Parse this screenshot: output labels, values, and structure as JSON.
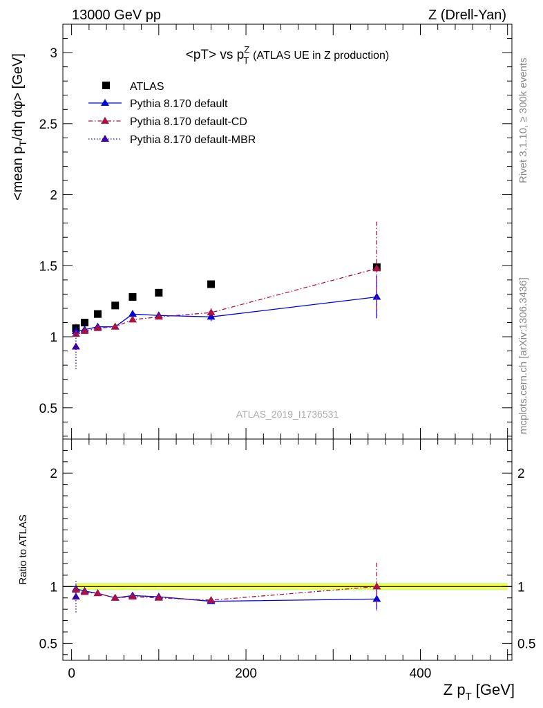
{
  "header": {
    "energy_label": "13000 GeV pp",
    "process_label": "Z (Drell-Yan)"
  },
  "side_text": {
    "rivet": "Rivet 3.1.10, ≥ 300k events",
    "mcplots": "mcplots.cern.ch [arXiv:1306.3436]"
  },
  "watermark": "ATLAS_2019_I1736531",
  "colors": {
    "data": "#000000",
    "default": "#0000dd",
    "cd": "#aa1144",
    "mbr": "#3300aa",
    "band_inner": "#ffff33",
    "band_outer": "#ccff99"
  },
  "chart_data": [
    {
      "type": "scatter",
      "panel": "main",
      "title_parts": {
        "lead": "<pT> vs p",
        "sup": "Z",
        "sub": "T",
        "tail": "(ATLAS UE in Z production)"
      },
      "ylabel_parts": {
        "a": "<mean p",
        "b": "T",
        "c": "/dη dφ> [GeV]"
      },
      "ylim": [
        0.28,
        3.2
      ],
      "xlim": [
        -10,
        505
      ],
      "yticks": [
        0.5,
        1,
        1.5,
        2,
        2.5,
        3
      ],
      "ytick_labels": [
        "0.5",
        "1",
        "1.5",
        "2",
        "2.5",
        "3"
      ],
      "legend_position": "top-left",
      "series": [
        {
          "name": "ATLAS",
          "style": "data",
          "x": [
            5,
            15,
            30,
            50,
            70,
            100,
            160,
            350
          ],
          "y": [
            1.06,
            1.1,
            1.16,
            1.22,
            1.28,
            1.31,
            1.37,
            1.49
          ]
        },
        {
          "name": "Pythia 8.170 default",
          "style": "default",
          "x": [
            5,
            15,
            30,
            50,
            70,
            100,
            160,
            350
          ],
          "y": [
            1.04,
            1.05,
            1.07,
            1.07,
            1.16,
            1.15,
            1.14,
            1.28
          ],
          "err": [
            0.02,
            0.01,
            0.01,
            0.01,
            0.02,
            0.02,
            0.03,
            0.15
          ]
        },
        {
          "name": "Pythia 8.170 default-CD",
          "style": "cd",
          "x": [
            5,
            15,
            30,
            50,
            70,
            100,
            160,
            350
          ],
          "y": [
            1.02,
            1.04,
            1.06,
            1.07,
            1.12,
            1.14,
            1.17,
            1.48
          ],
          "err": [
            0.02,
            0.01,
            0.01,
            0.01,
            0.01,
            0.02,
            0.03,
            0.33
          ]
        },
        {
          "name": "Pythia 8.170 default-MBR",
          "style": "mbr",
          "x": [
            5
          ],
          "y": [
            0.93
          ],
          "err": [
            0.16
          ]
        }
      ]
    },
    {
      "type": "scatter",
      "panel": "ratio",
      "ylabel": "Ratio to ATLAS",
      "xlabel_parts": {
        "a": "Z p",
        "b": "T",
        "c": "[GeV]"
      },
      "ylim": [
        0.35,
        2.3
      ],
      "xlim": [
        -10,
        505
      ],
      "xticks": [
        0,
        200,
        400
      ],
      "xtick_labels": [
        "0",
        "200",
        "400"
      ],
      "yticks": [
        0.5,
        1,
        2
      ],
      "ytick_labels": [
        "0.5",
        "1",
        "2"
      ],
      "series": [
        {
          "name": "Pythia 8.170 default",
          "style": "default",
          "x": [
            5,
            15,
            30,
            50,
            70,
            100,
            160,
            350
          ],
          "y": [
            0.98,
            0.96,
            0.94,
            0.9,
            0.92,
            0.91,
            0.87,
            0.89
          ],
          "err": [
            0.02,
            0.01,
            0.01,
            0.01,
            0.01,
            0.02,
            0.02,
            0.09
          ]
        },
        {
          "name": "Pythia 8.170 default-CD",
          "style": "cd",
          "x": [
            5,
            15,
            30,
            50,
            70,
            100,
            160,
            350
          ],
          "y": [
            0.97,
            0.95,
            0.94,
            0.9,
            0.91,
            0.9,
            0.88,
            1.0
          ],
          "err": [
            0.02,
            0.01,
            0.01,
            0.01,
            0.01,
            0.01,
            0.02,
            0.21
          ]
        },
        {
          "name": "Pythia 8.170 default-MBR",
          "style": "mbr",
          "x": [
            5
          ],
          "y": [
            0.91
          ],
          "err": [
            0.14
          ]
        }
      ]
    }
  ]
}
